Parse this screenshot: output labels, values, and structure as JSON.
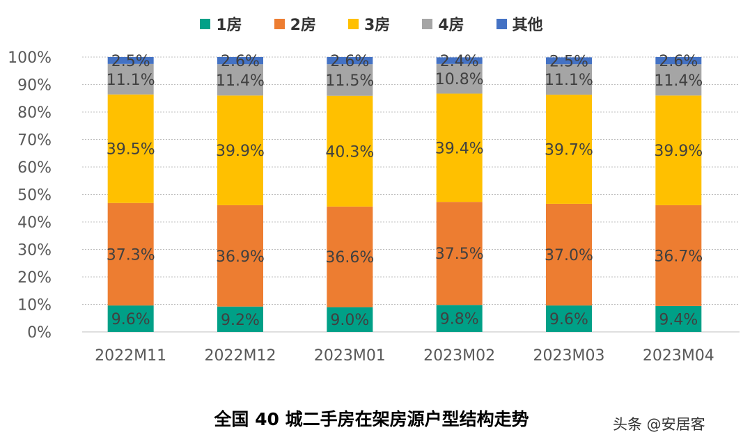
{
  "chart_data": {
    "type": "bar",
    "stacked": true,
    "title": "全国 40 城二手房在架房源户型结构走势",
    "categories": [
      "2022M11",
      "2022M12",
      "2023M01",
      "2023M02",
      "2023M03",
      "2023M04"
    ],
    "series": [
      {
        "name": "1房",
        "color": "#00A087",
        "values": [
          9.6,
          9.2,
          9.0,
          9.8,
          9.6,
          9.4
        ]
      },
      {
        "name": "2房",
        "color": "#ED7D31",
        "values": [
          37.3,
          36.9,
          36.6,
          37.5,
          37.0,
          36.7
        ]
      },
      {
        "name": "3房",
        "color": "#FFC000",
        "values": [
          39.5,
          39.9,
          40.3,
          39.4,
          39.7,
          39.9
        ]
      },
      {
        "name": "4房",
        "color": "#A5A5A5",
        "values": [
          11.1,
          11.4,
          11.5,
          10.8,
          11.1,
          11.4
        ]
      },
      {
        "name": "其他",
        "color": "#4472C4",
        "values": [
          2.5,
          2.6,
          2.6,
          2.4,
          2.5,
          2.6
        ]
      }
    ],
    "ylim": [
      0,
      100
    ],
    "yticks": [
      "0%",
      "10%",
      "20%",
      "30%",
      "40%",
      "50%",
      "60%",
      "70%",
      "80%",
      "90%",
      "100%"
    ],
    "grid": true,
    "legend": "top"
  },
  "watermark": "头条 @安居客"
}
